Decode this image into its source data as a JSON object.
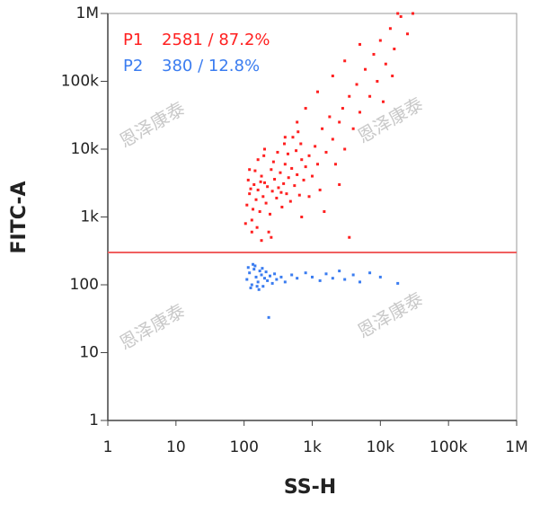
{
  "chart_data": {
    "type": "scatter",
    "x_label": "SS-H",
    "y_label": "FITC-A",
    "log_x": true,
    "log_y": true,
    "xlim": [
      1,
      1000000
    ],
    "ylim": [
      1,
      1000000
    ],
    "xticks": [
      1,
      10,
      100,
      {
        "value": 1000,
        "label": "1k"
      },
      {
        "value": 10000,
        "label": "10k"
      },
      {
        "value": 100000,
        "label": "100k"
      },
      {
        "value": 1000000,
        "label": "1M"
      }
    ],
    "yticks": [
      1,
      10,
      100,
      {
        "value": 1000,
        "label": "1k"
      },
      {
        "value": 10000,
        "label": "10k"
      },
      {
        "value": 100000,
        "label": "100k"
      },
      {
        "value": 1000000,
        "label": "1M"
      }
    ],
    "gate": {
      "y": 300,
      "color": "#f06060"
    },
    "watermark": "恩泽康泰",
    "series": [
      {
        "name": "P1",
        "stats": "2581 / 87.2%",
        "color": "#ff2020",
        "x": [
          110,
          120,
          130,
          140,
          150,
          160,
          170,
          180,
          190,
          200,
          210,
          220,
          240,
          250,
          260,
          280,
          300,
          320,
          340,
          360,
          380,
          400,
          420,
          450,
          480,
          500,
          550,
          600,
          650,
          700,
          750,
          800,
          105,
          115,
          125,
          135,
          145,
          155,
          175,
          195,
          230,
          270,
          310,
          350,
          390,
          440,
          520,
          580,
          620,
          680,
          900,
          1000,
          1100,
          1200,
          1400,
          1600,
          1800,
          2000,
          2200,
          2500,
          2800,
          3000,
          3500,
          4000,
          4500,
          5000,
          6000,
          7000,
          8000,
          9000,
          10000,
          12000,
          14000,
          16000,
          20000,
          25000,
          30000,
          18000,
          15000,
          11000,
          1300,
          900,
          700,
          250,
          180,
          130,
          3500,
          1500,
          2500,
          600,
          400,
          200,
          160,
          800,
          1200,
          2000,
          3000,
          5000,
          120
        ],
        "y": [
          1500,
          2200,
          900,
          3000,
          1800,
          2500,
          1200,
          4000,
          2000,
          3200,
          1600,
          2800,
          1100,
          5000,
          2400,
          3600,
          1900,
          2700,
          4500,
          1400,
          3100,
          6000,
          2200,
          3800,
          1700,
          5200,
          2900,
          4200,
          2100,
          7000,
          3500,
          5500,
          800,
          3500,
          2600,
          1300,
          4800,
          700,
          3300,
          8000,
          600,
          6500,
          9000,
          2300,
          12000,
          8500,
          15000,
          9500,
          18000,
          12000,
          8000,
          4000,
          11000,
          6000,
          20000,
          9000,
          30000,
          14000,
          6000,
          25000,
          40000,
          10000,
          60000,
          20000,
          90000,
          35000,
          150000,
          60000,
          250000,
          100000,
          400000,
          180000,
          600000,
          300000,
          900000,
          500000,
          1000000,
          1000000,
          120000,
          50000,
          2500,
          2000,
          1000,
          500,
          450,
          600,
          500,
          1200,
          3000,
          25000,
          15000,
          10000,
          7000,
          40000,
          70000,
          120000,
          200000,
          350000,
          5000
        ]
      },
      {
        "name": "P2",
        "stats": "380 / 12.8%",
        "color": "#3a7cf0",
        "x": [
          110,
          120,
          130,
          140,
          150,
          160,
          170,
          180,
          190,
          200,
          210,
          220,
          240,
          260,
          280,
          300,
          350,
          400,
          500,
          600,
          800,
          1000,
          1300,
          1600,
          2000,
          2500,
          3000,
          4000,
          5000,
          7000,
          10000,
          18000,
          125,
          145,
          165,
          230,
          115,
          135,
          155,
          185
        ],
        "y": [
          120,
          150,
          100,
          170,
          130,
          110,
          160,
          140,
          95,
          125,
          155,
          115,
          135,
          105,
          145,
          120,
          130,
          110,
          140,
          125,
          150,
          130,
          115,
          145,
          125,
          160,
          120,
          140,
          110,
          150,
          130,
          105,
          90,
          190,
          85,
          33,
          180,
          200,
          95,
          175
        ]
      }
    ]
  }
}
